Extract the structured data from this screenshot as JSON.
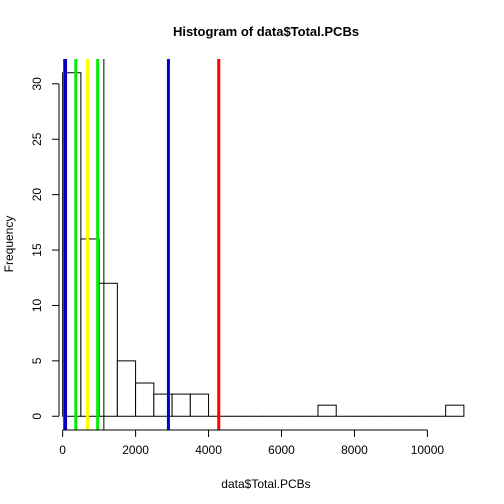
{
  "chart_data": {
    "type": "histogram",
    "title": "Histogram of data$Total.PCBs",
    "xlabel": "data$Total.PCBs",
    "ylabel": "Frequency",
    "bin_width": 500,
    "bins": [
      {
        "start": 0,
        "end": 500,
        "count": 31
      },
      {
        "start": 500,
        "end": 1000,
        "count": 16
      },
      {
        "start": 1000,
        "end": 1500,
        "count": 12
      },
      {
        "start": 1500,
        "end": 2000,
        "count": 5
      },
      {
        "start": 2000,
        "end": 2500,
        "count": 3
      },
      {
        "start": 2500,
        "end": 3000,
        "count": 2
      },
      {
        "start": 3000,
        "end": 3500,
        "count": 2
      },
      {
        "start": 3500,
        "end": 4000,
        "count": 2
      },
      {
        "start": 4000,
        "end": 4500,
        "count": 0
      },
      {
        "start": 4500,
        "end": 5000,
        "count": 0
      },
      {
        "start": 5000,
        "end": 5500,
        "count": 0
      },
      {
        "start": 5500,
        "end": 6000,
        "count": 0
      },
      {
        "start": 6000,
        "end": 6500,
        "count": 0
      },
      {
        "start": 6500,
        "end": 7000,
        "count": 0
      },
      {
        "start": 7000,
        "end": 7500,
        "count": 1
      },
      {
        "start": 7500,
        "end": 8000,
        "count": 0
      },
      {
        "start": 8000,
        "end": 8500,
        "count": 0
      },
      {
        "start": 8500,
        "end": 9000,
        "count": 0
      },
      {
        "start": 9000,
        "end": 9500,
        "count": 0
      },
      {
        "start": 9500,
        "end": 10000,
        "count": 0
      },
      {
        "start": 10000,
        "end": 10500,
        "count": 0
      },
      {
        "start": 10500,
        "end": 11000,
        "count": 1
      }
    ],
    "xlim": [
      -100,
      11250
    ],
    "ylim": [
      -1.24,
      32.24
    ],
    "x_ticks": [
      0,
      2000,
      4000,
      6000,
      8000,
      10000
    ],
    "y_ticks": [
      0,
      5,
      10,
      15,
      20,
      25,
      30
    ],
    "vertical_lines": [
      {
        "x": 50,
        "color": "#ff0000"
      },
      {
        "x": 80,
        "color": "#0000cc"
      },
      {
        "x": 360,
        "color": "#00ee00"
      },
      {
        "x": 680,
        "color": "#ffff00"
      },
      {
        "x": 960,
        "color": "#00ee00"
      },
      {
        "x": 1130,
        "color": "#000000"
      },
      {
        "x": 2900,
        "color": "#0000cc"
      },
      {
        "x": 4280,
        "color": "#ff0000"
      }
    ],
    "grid": false,
    "bar_fill": "#ffffff",
    "bar_stroke": "#000000"
  }
}
